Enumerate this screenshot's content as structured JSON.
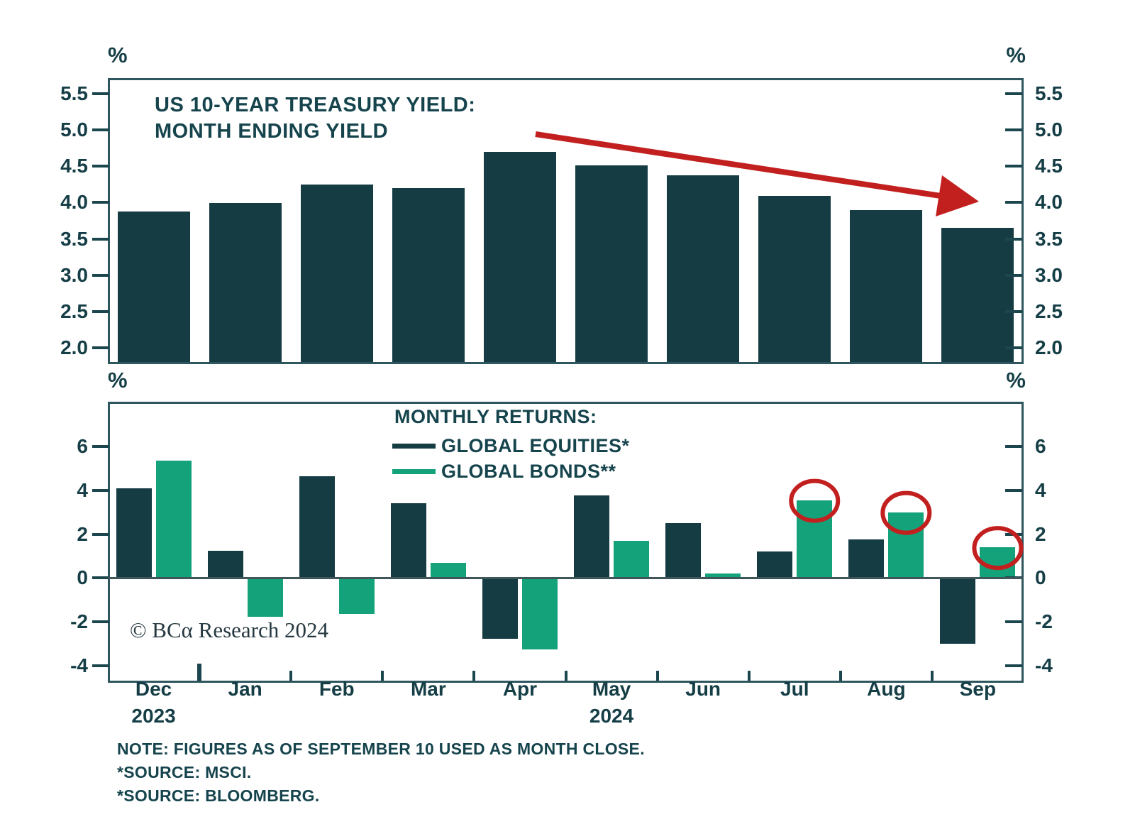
{
  "labels": {
    "percent": "%"
  },
  "copyright": "© BCα Research 2024",
  "notes": [
    "NOTE: FIGURES AS OF SEPTEMBER 10 USED AS MONTH CLOSE.",
    "*SOURCE: MSCI.",
    "*SOURCE: BLOOMBERG."
  ],
  "colors": {
    "equities_dark": "#153B43",
    "bonds_green": "#14A27A",
    "annotation_red": "#C2201F",
    "axis": "#2E565E",
    "tick": "#1C464E",
    "text": "#153E46"
  },
  "months": [
    {
      "label": "Dec",
      "year": "2023"
    },
    {
      "label": "Jan",
      "year": ""
    },
    {
      "label": "Feb",
      "year": ""
    },
    {
      "label": "Mar",
      "year": ""
    },
    {
      "label": "Apr",
      "year": ""
    },
    {
      "label": "May",
      "year": "2024"
    },
    {
      "label": "Jun",
      "year": ""
    },
    {
      "label": "Jul",
      "year": ""
    },
    {
      "label": "Aug",
      "year": ""
    },
    {
      "label": "Sep",
      "year": ""
    }
  ],
  "chart_data": [
    {
      "type": "bar",
      "title_lines": [
        "US 10-YEAR TREASURY YIELD:",
        "MONTH ENDING YIELD"
      ],
      "unit": "%",
      "categories": [
        "Dec 2023",
        "Jan",
        "Feb",
        "Mar",
        "Apr",
        "May",
        "Jun",
        "Jul",
        "Aug",
        "Sep"
      ],
      "values": [
        3.88,
        3.99,
        4.25,
        4.2,
        4.7,
        4.51,
        4.37,
        4.09,
        3.9,
        3.65
      ],
      "yticks": [
        2.0,
        2.5,
        3.0,
        3.5,
        4.0,
        4.5,
        5.0,
        5.5
      ],
      "tick_decimals": 1,
      "ylim": [
        1.78,
        5.71
      ],
      "grid": false,
      "annotation": "red downward trend arrow from May 2024 toward September"
    },
    {
      "type": "bar",
      "title": "MONTHLY RETURNS:",
      "unit": "%",
      "categories": [
        "Dec 2023",
        "Jan",
        "Feb",
        "Mar",
        "Apr",
        "May",
        "Jun",
        "Jul",
        "Aug",
        "Sep"
      ],
      "series": [
        {
          "name": "GLOBAL EQUITIES*",
          "values": [
            4.1,
            1.25,
            4.65,
            3.4,
            -2.75,
            3.75,
            2.5,
            1.2,
            1.75,
            -3.0
          ]
        },
        {
          "name": "GLOBAL BONDS**",
          "values": [
            5.35,
            -1.75,
            -1.65,
            0.7,
            -3.25,
            1.7,
            0.2,
            3.55,
            3.0,
            1.4
          ],
          "circled_categories": [
            "Jul",
            "Aug",
            "Sep"
          ]
        }
      ],
      "yticks": [
        6,
        4,
        2,
        0,
        -2,
        -4
      ],
      "tick_decimals": 0,
      "ylim": [
        -4.77,
        8.03
      ],
      "grid": false,
      "legend_position": "top-center-inside",
      "annotation": "red ellipses highlighting July, August, September global bond returns"
    }
  ]
}
